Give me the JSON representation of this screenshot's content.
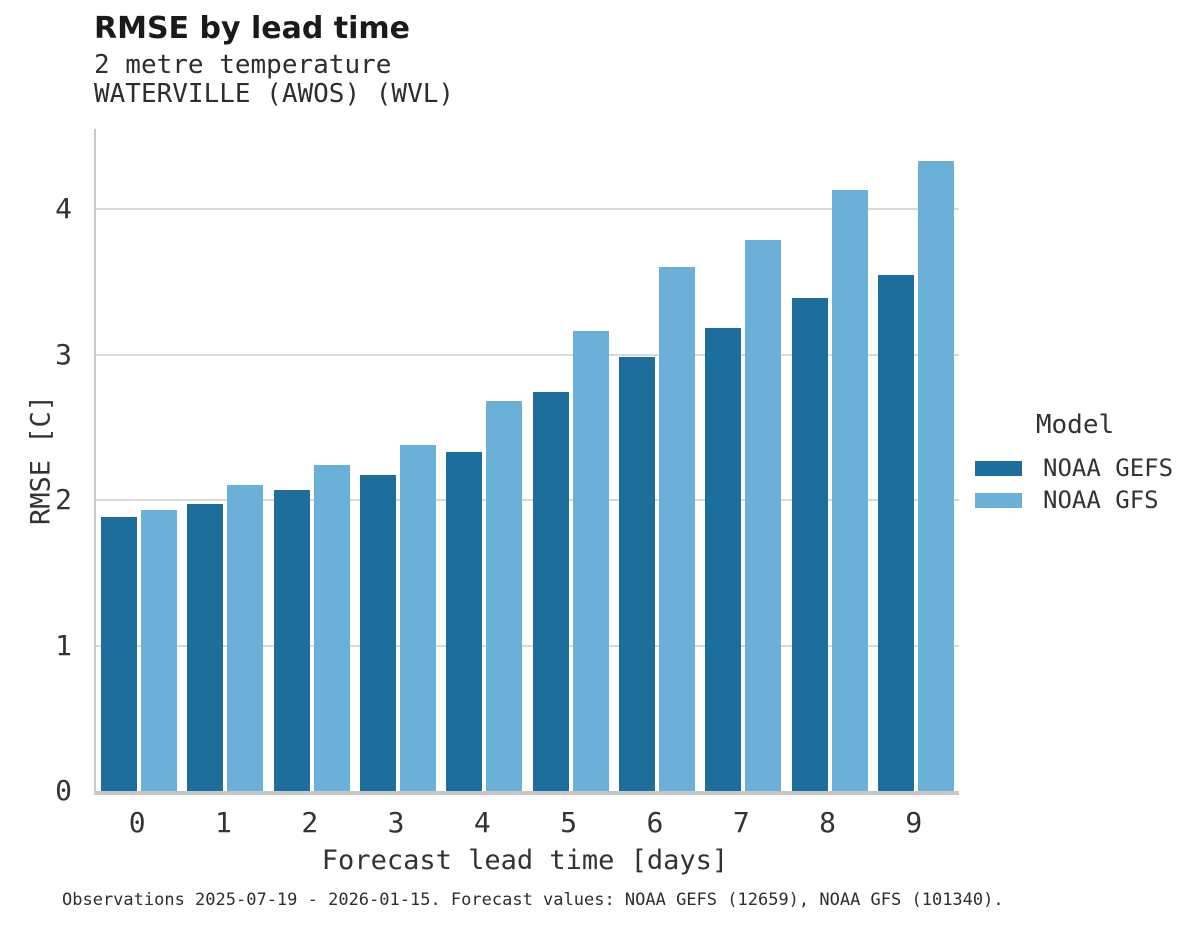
{
  "chart": {
    "title": "RMSE by lead time",
    "subtitle_lines": [
      "2 metre temperature",
      "WATERVILLE (AWOS) (WVL)"
    ]
  },
  "chart_data": {
    "type": "bar",
    "categories": [
      "0",
      "1",
      "2",
      "3",
      "4",
      "5",
      "6",
      "7",
      "8",
      "9"
    ],
    "series": [
      {
        "name": "NOAA GEFS",
        "color": "#1d6d9d",
        "values": [
          1.88,
          1.97,
          2.07,
          2.17,
          2.33,
          2.74,
          2.98,
          3.18,
          3.39,
          3.55
        ]
      },
      {
        "name": "NOAA GFS",
        "color": "#6ab0d7",
        "values": [
          1.93,
          2.1,
          2.24,
          2.38,
          2.68,
          3.16,
          3.6,
          3.79,
          4.13,
          4.33
        ]
      }
    ],
    "title": "RMSE by lead time",
    "xlabel": "Forecast lead time [days]",
    "ylabel": "RMSE [C]",
    "ylim": [
      0,
      4.55
    ],
    "yticks": [
      0,
      1,
      2,
      3,
      4
    ],
    "grid": true,
    "legend_title": "Model",
    "legend_position": "right",
    "colors": {
      "grid": "#d9d9d9",
      "axis": "#c6c6c6",
      "text": "#333333"
    }
  },
  "caption": "Observations 2025-07-19 - 2026-01-15. Forecast values: NOAA GEFS (12659), NOAA GFS (101340)."
}
